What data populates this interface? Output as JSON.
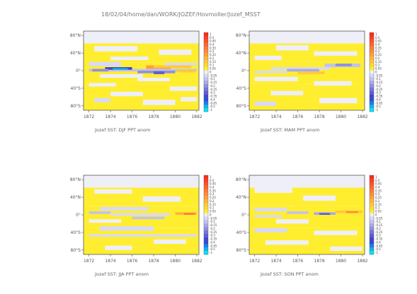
{
  "figure": {
    "title": "18/02/04/home/dan/WORK/JOZEF/Hovmoller/Jozef_MSST"
  },
  "chart_data": [
    {
      "type": "heatmap",
      "title": "Jozef SST: DJF PPT anom",
      "xlabel": "",
      "ylabel": "",
      "xlim": [
        1871.5,
        1882.2
      ],
      "ylim": [
        -90,
        90
      ],
      "x_ticks": [
        "1872",
        "1874",
        "1876",
        "1878",
        "1880",
        "1882"
      ],
      "y_ticks": [
        "80°N",
        "40°N",
        "0°",
        "40°S",
        "80°S"
      ],
      "x_tick_values": [
        1872,
        1874,
        1876,
        1878,
        1880,
        1882
      ],
      "y_tick_values": [
        80,
        40,
        0,
        -40,
        -80
      ],
      "colorbar_ticks": [
        "1",
        "0.5",
        "0.45",
        "0.4",
        "0.35",
        "0.3",
        "0.25",
        "0.2",
        "0.15",
        "0.1",
        "0.05",
        "0",
        "-0.05",
        "-0.1",
        "-0.15",
        "-0.2",
        "-0.25",
        "-0.3",
        "-0.35",
        "-0.4",
        "-0.45",
        "-0.5",
        "-1"
      ],
      "bands": [
        {
          "x0": 1871.5,
          "x1": 1882.2,
          "y0": 62,
          "y1": 90,
          "value": 0.0
        },
        {
          "x0": 1871.5,
          "x1": 1882.2,
          "y0": 18,
          "y1": 62,
          "value": 0.05
        },
        {
          "x0": 1871.5,
          "x1": 1882.2,
          "y0": -32,
          "y1": 18,
          "value": 0.05
        },
        {
          "x0": 1871.5,
          "x1": 1882.2,
          "y0": -90,
          "y1": -32,
          "value": 0.05
        },
        {
          "x0": 1872.5,
          "x1": 1876.5,
          "y0": 44,
          "y1": 56,
          "value": 0.0
        },
        {
          "x0": 1878.5,
          "x1": 1881.5,
          "y0": 36,
          "y1": 48,
          "value": 0.0
        },
        {
          "x0": 1874.0,
          "x1": 1877.5,
          "y0": 24,
          "y1": 32,
          "value": 0.0
        },
        {
          "x0": 1872.0,
          "x1": 1875.0,
          "y0": 10,
          "y1": 20,
          "value": -0.05
        },
        {
          "x0": 1879.0,
          "x1": 1882.0,
          "y0": 12,
          "y1": 18,
          "value": -0.05
        },
        {
          "x0": 1877.3,
          "x1": 1879.6,
          "y0": 4,
          "y1": 12,
          "value": 0.25
        },
        {
          "x0": 1878.0,
          "x1": 1881.5,
          "y0": 6,
          "y1": 12,
          "value": 0.15
        },
        {
          "x0": 1872.0,
          "x1": 1882.0,
          "y0": -2,
          "y1": 4,
          "value": -0.1
        },
        {
          "x0": 1873.5,
          "x1": 1876.0,
          "y0": 2,
          "y1": 8,
          "value": -0.35
        },
        {
          "x0": 1874.2,
          "x1": 1875.6,
          "y0": 2,
          "y1": 6,
          "value": -0.5
        },
        {
          "x0": 1872.3,
          "x1": 1873.8,
          "y0": -2,
          "y1": 4,
          "value": -0.2
        },
        {
          "x0": 1876.5,
          "x1": 1880.0,
          "y0": -6,
          "y1": 0,
          "value": -0.2
        },
        {
          "x0": 1878.0,
          "x1": 1879.0,
          "y0": -8,
          "y1": -2,
          "value": -0.3
        },
        {
          "x0": 1880.2,
          "x1": 1881.8,
          "y0": -4,
          "y1": 2,
          "value": 0.15
        },
        {
          "x0": 1873.0,
          "x1": 1877.0,
          "y0": -16,
          "y1": -8,
          "value": 0.0
        },
        {
          "x0": 1876.5,
          "x1": 1879.5,
          "y0": -24,
          "y1": -16,
          "value": 0.0
        },
        {
          "x0": 1872.0,
          "x1": 1874.5,
          "y0": -36,
          "y1": -28,
          "value": 0.0
        },
        {
          "x0": 1879.5,
          "x1": 1882.0,
          "y0": -46,
          "y1": -36,
          "value": 0.0
        },
        {
          "x0": 1874.0,
          "x1": 1877.0,
          "y0": -58,
          "y1": -48,
          "value": 0.0
        },
        {
          "x0": 1877.0,
          "x1": 1880.0,
          "y0": -78,
          "y1": -66,
          "value": 0.0
        },
        {
          "x0": 1872.5,
          "x1": 1874.0,
          "y0": -72,
          "y1": -62,
          "value": -0.05
        },
        {
          "x0": 1880.5,
          "x1": 1882.0,
          "y0": -70,
          "y1": -60,
          "value": 0.0
        }
      ]
    },
    {
      "type": "heatmap",
      "title": "Jozef SST: MAM PPT anom",
      "xlabel": "",
      "ylabel": "",
      "xlim": [
        1871.5,
        1882.2
      ],
      "ylim": [
        -90,
        90
      ],
      "x_ticks": [
        "1872",
        "1874",
        "1876",
        "1878",
        "1880",
        "1882"
      ],
      "y_ticks": [
        "80°N",
        "40°N",
        "0°",
        "40°S",
        "80°S"
      ],
      "x_tick_values": [
        1872,
        1874,
        1876,
        1878,
        1880,
        1882
      ],
      "y_tick_values": [
        80,
        40,
        0,
        -40,
        -80
      ],
      "colorbar_ticks": [
        "1",
        "0.5",
        "0.45",
        "0.4",
        "0.35",
        "0.3",
        "0.25",
        "0.2",
        "0.15",
        "0.1",
        "0.05",
        "0",
        "-0.05",
        "-0.1",
        "-0.15",
        "-0.2",
        "-0.25",
        "-0.3",
        "-0.35",
        "-0.4",
        "-0.45",
        "-0.5",
        "-1"
      ],
      "bands": [
        {
          "x0": 1871.5,
          "x1": 1882.2,
          "y0": 62,
          "y1": 90,
          "value": 0.0
        },
        {
          "x0": 1871.5,
          "x1": 1882.2,
          "y0": 20,
          "y1": 62,
          "value": 0.05
        },
        {
          "x0": 1871.5,
          "x1": 1882.2,
          "y0": -30,
          "y1": 20,
          "value": 0.05
        },
        {
          "x0": 1871.5,
          "x1": 1882.2,
          "y0": -90,
          "y1": -30,
          "value": 0.05
        },
        {
          "x0": 1874.0,
          "x1": 1877.0,
          "y0": 46,
          "y1": 58,
          "value": 0.0
        },
        {
          "x0": 1877.5,
          "x1": 1881.5,
          "y0": 34,
          "y1": 44,
          "value": 0.0
        },
        {
          "x0": 1872.0,
          "x1": 1874.5,
          "y0": 24,
          "y1": 34,
          "value": 0.0
        },
        {
          "x0": 1878.5,
          "x1": 1881.8,
          "y0": 8,
          "y1": 16,
          "value": -0.1
        },
        {
          "x0": 1879.5,
          "x1": 1881.0,
          "y0": 10,
          "y1": 16,
          "value": -0.2
        },
        {
          "x0": 1873.5,
          "x1": 1879.0,
          "y0": 2,
          "y1": 8,
          "value": -0.05
        },
        {
          "x0": 1875.0,
          "x1": 1878.0,
          "y0": -2,
          "y1": 4,
          "value": -0.15
        },
        {
          "x0": 1876.0,
          "x1": 1878.5,
          "y0": -8,
          "y1": -2,
          "value": 0.15
        },
        {
          "x0": 1872.0,
          "x1": 1875.0,
          "y0": -6,
          "y1": 0,
          "value": -0.05
        },
        {
          "x0": 1872.0,
          "x1": 1876.0,
          "y0": -24,
          "y1": -14,
          "value": 0.0
        },
        {
          "x0": 1877.5,
          "x1": 1881.0,
          "y0": -34,
          "y1": -24,
          "value": 0.0
        },
        {
          "x0": 1873.5,
          "x1": 1876.5,
          "y0": -56,
          "y1": -46,
          "value": 0.0
        },
        {
          "x0": 1878.0,
          "x1": 1881.5,
          "y0": -74,
          "y1": -62,
          "value": 0.0
        },
        {
          "x0": 1872.0,
          "x1": 1874.0,
          "y0": -80,
          "y1": -70,
          "value": -0.05
        }
      ]
    },
    {
      "type": "heatmap",
      "title": "Jozef SST: JJA PPT anom",
      "xlabel": "",
      "ylabel": "",
      "xlim": [
        1871.5,
        1882.2
      ],
      "ylim": [
        -90,
        90
      ],
      "x_ticks": [
        "1872",
        "1874",
        "1876",
        "1878",
        "1880",
        "1882"
      ],
      "y_ticks": [
        "80°N",
        "40°N",
        "0°",
        "40°S",
        "80°S"
      ],
      "x_tick_values": [
        1872,
        1874,
        1876,
        1878,
        1880,
        1882
      ],
      "y_tick_values": [
        80,
        40,
        0,
        -40,
        -80
      ],
      "colorbar_ticks": [
        "1",
        "0.5",
        "0.45",
        "0.4",
        "0.35",
        "0.3",
        "0.25",
        "0.2",
        "0.15",
        "0.1",
        "0.05",
        "0",
        "-0.05",
        "-0.1",
        "-0.15",
        "-0.2",
        "-0.25",
        "-0.3",
        "-0.35",
        "-0.4",
        "-0.45",
        "-0.5",
        "-1"
      ],
      "bands": [
        {
          "x0": 1871.5,
          "x1": 1882.2,
          "y0": 62,
          "y1": 90,
          "value": 0.0
        },
        {
          "x0": 1871.5,
          "x1": 1882.2,
          "y0": 20,
          "y1": 62,
          "value": 0.05
        },
        {
          "x0": 1871.5,
          "x1": 1882.2,
          "y0": -30,
          "y1": 20,
          "value": 0.05
        },
        {
          "x0": 1871.5,
          "x1": 1882.2,
          "y0": -90,
          "y1": -30,
          "value": 0.05
        },
        {
          "x0": 1872.5,
          "x1": 1876.0,
          "y0": 48,
          "y1": 58,
          "value": 0.0
        },
        {
          "x0": 1877.0,
          "x1": 1880.5,
          "y0": 30,
          "y1": 42,
          "value": 0.0
        },
        {
          "x0": 1873.0,
          "x1": 1877.5,
          "y0": 10,
          "y1": 18,
          "value": -0.05
        },
        {
          "x0": 1872.0,
          "x1": 1874.0,
          "y0": 2,
          "y1": 8,
          "value": -0.1
        },
        {
          "x0": 1874.0,
          "x1": 1879.5,
          "y0": -2,
          "y1": 4,
          "value": -0.05
        },
        {
          "x0": 1880.0,
          "x1": 1882.0,
          "y0": 0,
          "y1": 6,
          "value": 0.2
        },
        {
          "x0": 1880.8,
          "x1": 1881.8,
          "y0": 0,
          "y1": 4,
          "value": 0.35
        },
        {
          "x0": 1876.0,
          "x1": 1879.0,
          "y0": -10,
          "y1": -4,
          "value": -0.1
        },
        {
          "x0": 1872.0,
          "x1": 1875.0,
          "y0": -18,
          "y1": -10,
          "value": 0.0
        },
        {
          "x0": 1873.0,
          "x1": 1878.0,
          "y0": -36,
          "y1": -26,
          "value": -0.05
        },
        {
          "x0": 1872.0,
          "x1": 1882.0,
          "y0": -50,
          "y1": -44,
          "value": -0.05
        },
        {
          "x0": 1878.0,
          "x1": 1881.0,
          "y0": -66,
          "y1": -56,
          "value": 0.0
        },
        {
          "x0": 1873.5,
          "x1": 1876.0,
          "y0": -80,
          "y1": -70,
          "value": 0.0
        }
      ]
    },
    {
      "type": "heatmap",
      "title": "Jozef SST: SON PPT anom",
      "xlabel": "",
      "ylabel": "",
      "xlim": [
        1871.5,
        1882.2
      ],
      "ylim": [
        -90,
        90
      ],
      "x_ticks": [
        "1872",
        "1874",
        "1876",
        "1878",
        "1880",
        "1882"
      ],
      "y_ticks": [
        "80°N",
        "40°N",
        "0°",
        "40°S",
        "80°S"
      ],
      "x_tick_values": [
        1872,
        1874,
        1876,
        1878,
        1880,
        1882
      ],
      "y_tick_values": [
        80,
        40,
        0,
        -40,
        -80
      ],
      "colorbar_ticks": [
        "1",
        "0.5",
        "0.45",
        "0.4",
        "0.35",
        "0.3",
        "0.25",
        "0.2",
        "0.15",
        "0.1",
        "0.05",
        "0",
        "-0.05",
        "-0.1",
        "-0.15",
        "-0.2",
        "-0.25",
        "-0.3",
        "-0.35",
        "-0.4",
        "-0.45",
        "-0.5",
        "-1"
      ],
      "bands": [
        {
          "x0": 1871.5,
          "x1": 1882.2,
          "y0": 62,
          "y1": 90,
          "value": 0.0
        },
        {
          "x0": 1871.5,
          "x1": 1882.2,
          "y0": 20,
          "y1": 62,
          "value": 0.05
        },
        {
          "x0": 1871.5,
          "x1": 1882.2,
          "y0": -30,
          "y1": 20,
          "value": 0.05
        },
        {
          "x0": 1871.5,
          "x1": 1882.2,
          "y0": -90,
          "y1": -30,
          "value": 0.05
        },
        {
          "x0": 1872.0,
          "x1": 1875.5,
          "y0": 50,
          "y1": 62,
          "value": 0.0
        },
        {
          "x0": 1876.5,
          "x1": 1879.5,
          "y0": 32,
          "y1": 44,
          "value": 0.0
        },
        {
          "x0": 1872.0,
          "x1": 1875.0,
          "y0": 8,
          "y1": 16,
          "value": -0.05
        },
        {
          "x0": 1875.0,
          "x1": 1877.0,
          "y0": 2,
          "y1": 8,
          "value": -0.1
        },
        {
          "x0": 1877.5,
          "x1": 1879.5,
          "y0": 0,
          "y1": 6,
          "value": -0.15
        },
        {
          "x0": 1878.0,
          "x1": 1879.0,
          "y0": 0,
          "y1": 4,
          "value": -0.3
        },
        {
          "x0": 1879.5,
          "x1": 1882.0,
          "y0": 4,
          "y1": 10,
          "value": 0.15
        },
        {
          "x0": 1880.5,
          "x1": 1881.6,
          "y0": 4,
          "y1": 8,
          "value": 0.3
        },
        {
          "x0": 1872.0,
          "x1": 1874.5,
          "y0": -6,
          "y1": 0,
          "value": -0.05
        },
        {
          "x0": 1874.0,
          "x1": 1877.0,
          "y0": -20,
          "y1": -10,
          "value": 0.0
        },
        {
          "x0": 1872.0,
          "x1": 1875.0,
          "y0": -40,
          "y1": -30,
          "value": -0.05
        },
        {
          "x0": 1877.5,
          "x1": 1881.5,
          "y0": -46,
          "y1": -36,
          "value": 0.0
        },
        {
          "x0": 1873.0,
          "x1": 1877.0,
          "y0": -68,
          "y1": -58,
          "value": 0.0
        },
        {
          "x0": 1879.0,
          "x1": 1882.0,
          "y0": -82,
          "y1": -72,
          "value": 0.0
        }
      ]
    }
  ],
  "colors": {
    "text": "#666666",
    "frame": "#555555",
    "palette": [
      {
        "v": 1.0,
        "c": "#ff2a1a"
      },
      {
        "v": 0.5,
        "c": "#ff3b1f"
      },
      {
        "v": 0.45,
        "c": "#ff5028"
      },
      {
        "v": 0.4,
        "c": "#ff6530"
      },
      {
        "v": 0.35,
        "c": "#ff7a38"
      },
      {
        "v": 0.3,
        "c": "#ff8c3a"
      },
      {
        "v": 0.25,
        "c": "#ff9f3a"
      },
      {
        "v": 0.2,
        "c": "#ffb43a"
      },
      {
        "v": 0.15,
        "c": "#ffc83a"
      },
      {
        "v": 0.1,
        "c": "#ffd930"
      },
      {
        "v": 0.05,
        "c": "#ffee30"
      },
      {
        "v": 0.0,
        "c": "#efeff9"
      },
      {
        "v": -0.05,
        "c": "#d9d9f3"
      },
      {
        "v": -0.1,
        "c": "#c2c2ee"
      },
      {
        "v": -0.15,
        "c": "#a9a9e8"
      },
      {
        "v": -0.2,
        "c": "#8f8fe2"
      },
      {
        "v": -0.25,
        "c": "#7676dc"
      },
      {
        "v": -0.3,
        "c": "#5d5dd6"
      },
      {
        "v": -0.35,
        "c": "#4444d0"
      },
      {
        "v": -0.4,
        "c": "#2c4fd8"
      },
      {
        "v": -0.45,
        "c": "#1e7fe6"
      },
      {
        "v": -0.5,
        "c": "#12b0f0"
      },
      {
        "v": -1.0,
        "c": "#00e6f5"
      }
    ]
  }
}
